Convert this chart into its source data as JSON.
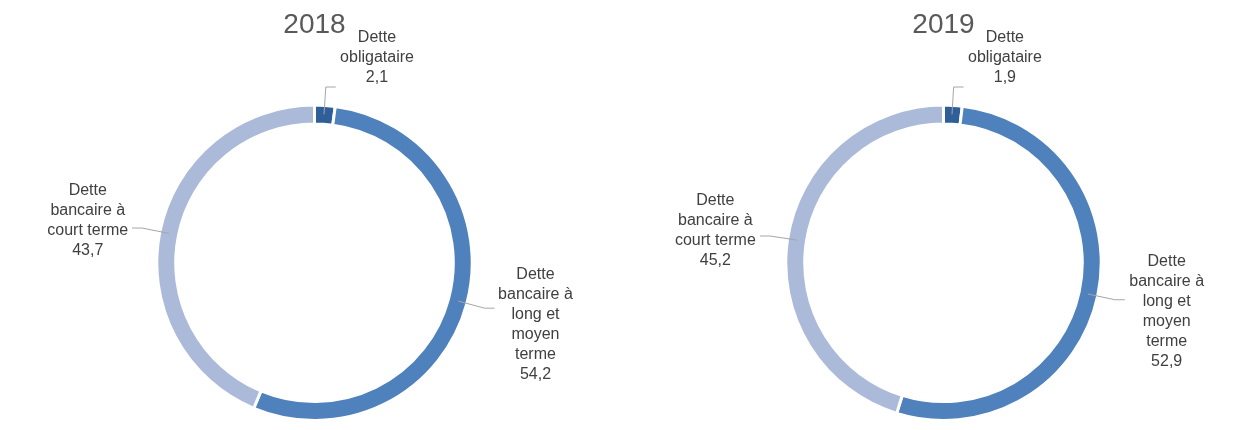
{
  "chart_data": [
    {
      "type": "donut",
      "title": "2018",
      "categories": [
        "Dette obligataire",
        "Dette bancaire à long et moyen terme",
        "Dette bancaire à court terme"
      ],
      "values": [
        2.1,
        54.2,
        43.7
      ],
      "value_labels": [
        "2,1",
        "54,2",
        "43,7"
      ],
      "colors": [
        "#2f5f98",
        "#4f81bd",
        "#abbad9"
      ]
    },
    {
      "type": "donut",
      "title": "2019",
      "categories": [
        "Dette obligataire",
        "Dette bancaire à long et moyen terme",
        "Dette bancaire à court terme"
      ],
      "values": [
        1.9,
        52.9,
        45.2
      ],
      "value_labels": [
        "1,9",
        "52,9",
        "45,2"
      ],
      "colors": [
        "#2f5f98",
        "#4f81bd",
        "#abbad9"
      ]
    }
  ]
}
